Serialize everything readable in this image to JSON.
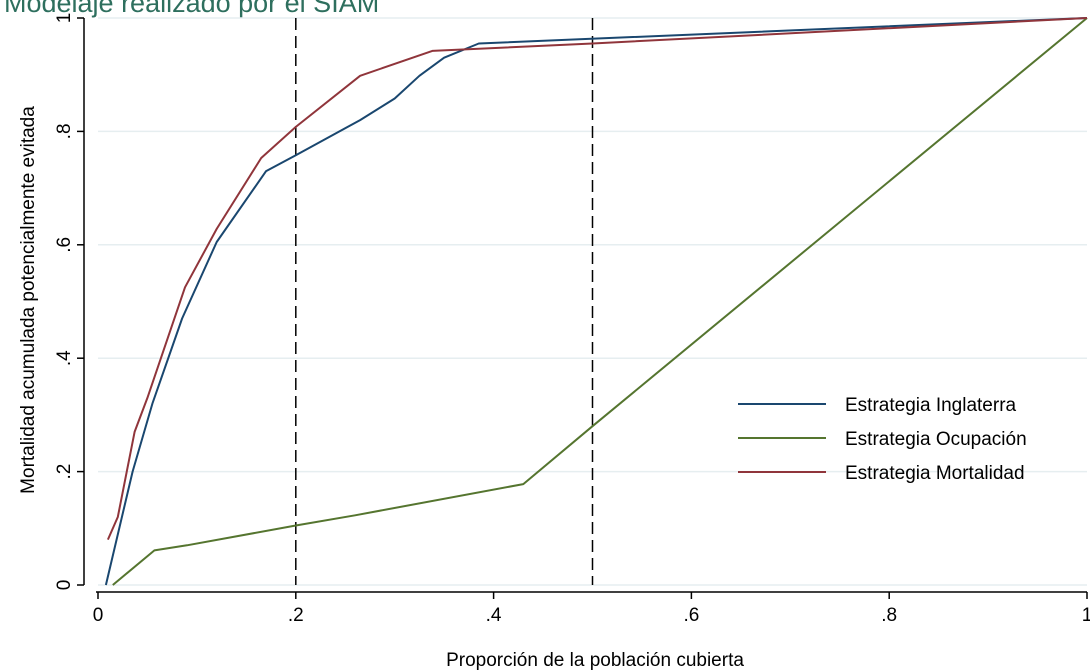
{
  "chart_data": {
    "type": "line",
    "title": "Modelaje realizado por el SIAM",
    "xlabel": "Proporción de la población cubierta",
    "ylabel": "Mortalidad acumulada potencialmente evitada",
    "xlim": [
      0,
      1
    ],
    "ylim": [
      0,
      1
    ],
    "xticks": [
      0,
      0.2,
      0.4,
      0.6,
      0.8,
      1
    ],
    "xtick_labels": [
      "0",
      ".2",
      ".4",
      ".6",
      ".8",
      "1"
    ],
    "yticks": [
      0,
      0.2,
      0.4,
      0.6,
      0.8,
      1
    ],
    "ytick_labels": [
      "0",
      ".2",
      ".4",
      ".6",
      ".8",
      "1"
    ],
    "grid": "horizontal",
    "reference_lines_x": [
      0.2,
      0.5
    ],
    "legend_position": "right",
    "series": [
      {
        "name": "Estrategia Inglaterra",
        "color": "#1a476f",
        "points": [
          [
            0.008,
            0.0
          ],
          [
            0.035,
            0.2
          ],
          [
            0.055,
            0.32
          ],
          [
            0.085,
            0.47
          ],
          [
            0.12,
            0.605
          ],
          [
            0.17,
            0.73
          ],
          [
            0.2,
            0.758
          ],
          [
            0.265,
            0.82
          ],
          [
            0.3,
            0.858
          ],
          [
            0.325,
            0.898
          ],
          [
            0.35,
            0.93
          ],
          [
            0.385,
            0.955
          ],
          [
            1.0,
            1.0
          ]
        ]
      },
      {
        "name": "Estrategia Ocupación",
        "color": "#55752f",
        "points": [
          [
            0.015,
            0.0
          ],
          [
            0.057,
            0.061
          ],
          [
            0.09,
            0.07
          ],
          [
            0.2,
            0.105
          ],
          [
            0.26,
            0.123
          ],
          [
            0.43,
            0.178
          ],
          [
            0.5,
            0.28
          ],
          [
            1.0,
            1.0
          ]
        ]
      },
      {
        "name": "Estrategia Mortalidad",
        "color": "#90353b",
        "points": [
          [
            0.01,
            0.08
          ],
          [
            0.02,
            0.12
          ],
          [
            0.037,
            0.27
          ],
          [
            0.05,
            0.33
          ],
          [
            0.088,
            0.525
          ],
          [
            0.12,
            0.628
          ],
          [
            0.165,
            0.753
          ],
          [
            0.2,
            0.808
          ],
          [
            0.265,
            0.898
          ],
          [
            0.338,
            0.942
          ],
          [
            0.5,
            0.955
          ],
          [
            1.0,
            1.0
          ]
        ]
      }
    ]
  }
}
